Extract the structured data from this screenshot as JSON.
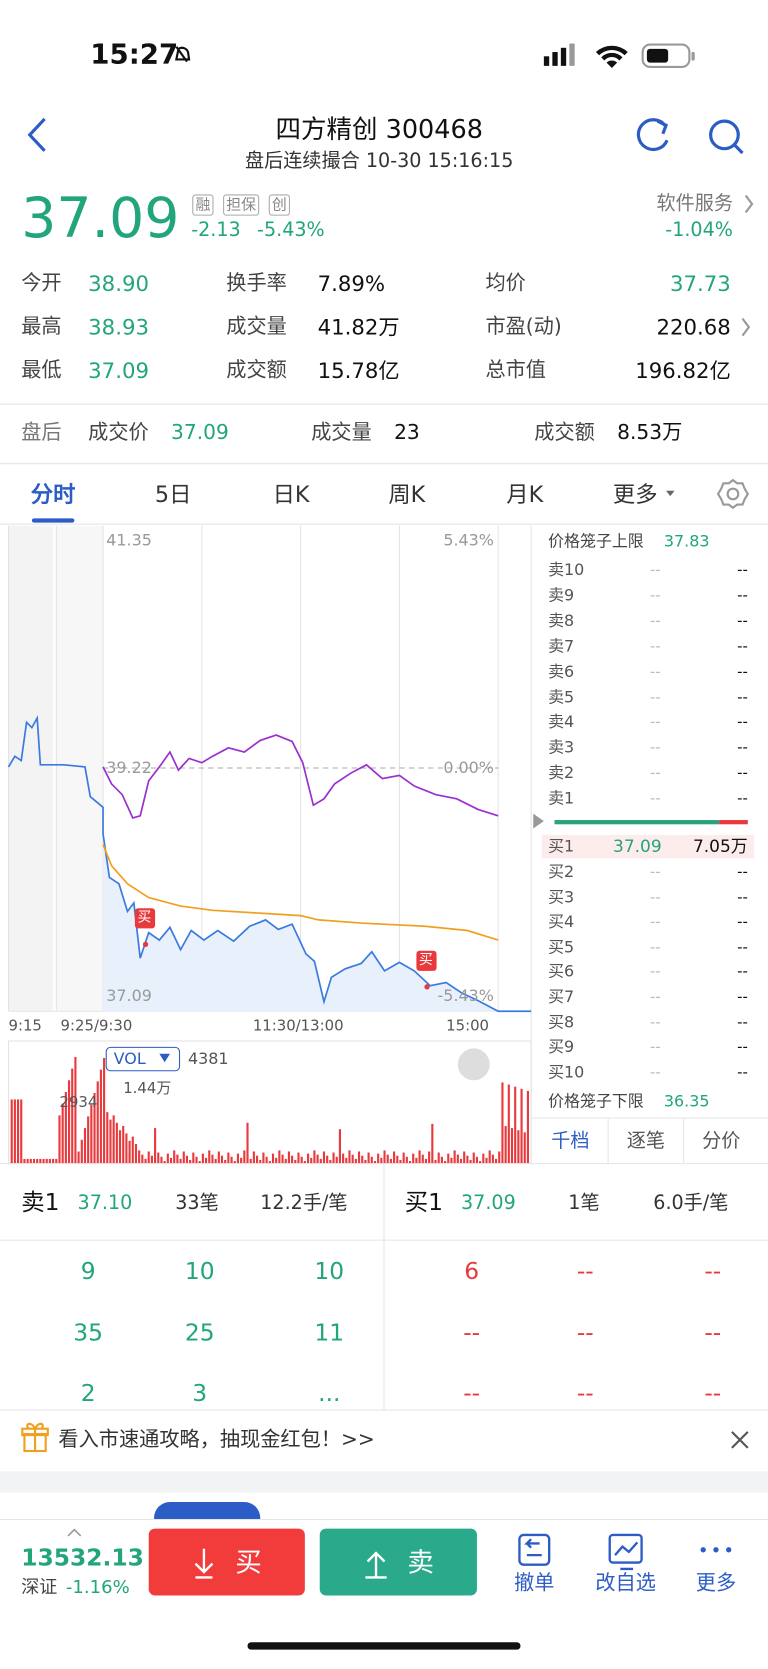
{
  "status": {
    "time": "15:27"
  },
  "header": {
    "title": "四方精创 300468",
    "subtitle": "盘后连续撮合 10-30 15:16:15"
  },
  "quote": {
    "price": "37.09",
    "badges": [
      "融",
      "担保",
      "创"
    ],
    "change": "-2.13",
    "percent": "-5.43%",
    "sector": "软件服务",
    "sector_percent": "-1.04%"
  },
  "stats": [
    [
      [
        "今开",
        "38.90"
      ],
      [
        "换手率",
        "7.89%"
      ],
      [
        "均价",
        "37.73"
      ]
    ],
    [
      [
        "最高",
        "38.93"
      ],
      [
        "成交量",
        "41.82万"
      ],
      [
        "市盈(动)",
        "220.68"
      ]
    ],
    [
      [
        "最低",
        "37.09"
      ],
      [
        "成交额",
        "15.78亿"
      ],
      [
        "总市值",
        "196.82亿"
      ]
    ]
  ],
  "after_hours": {
    "label": "盘后",
    "price_label": "成交价",
    "price": "37.09",
    "volume_label": "成交量",
    "volume": "23",
    "amount_label": "成交额",
    "amount": "8.53万"
  },
  "tabs": [
    "分时",
    "5日",
    "日K",
    "周K",
    "月K",
    "更多"
  ],
  "chart": {
    "high": "41.35",
    "high_pct": "5.43%",
    "mid": "39.22",
    "mid_pct": "0.00%",
    "low": "37.09",
    "low_pct": "-5.43%",
    "times": [
      "9:15",
      "9:25/9:30",
      "11:30/13:00",
      "15:00"
    ],
    "buy_marker": "买",
    "vol_label": "VOL",
    "vol_value": "4381",
    "vol_left": "2934",
    "vol_max": "1.44万"
  },
  "order_book": {
    "upper_label": "价格笼子上限",
    "upper": "37.83",
    "asks": [
      {
        "level": "卖10",
        "price": "--",
        "volume": "--"
      },
      {
        "level": "卖9",
        "price": "--",
        "volume": "--"
      },
      {
        "level": "卖8",
        "price": "--",
        "volume": "--"
      },
      {
        "level": "卖7",
        "price": "--",
        "volume": "--"
      },
      {
        "level": "卖6",
        "price": "--",
        "volume": "--"
      },
      {
        "level": "卖5",
        "price": "--",
        "volume": "--"
      },
      {
        "level": "卖4",
        "price": "--",
        "volume": "--"
      },
      {
        "level": "卖3",
        "price": "--",
        "volume": "--"
      },
      {
        "level": "卖2",
        "price": "--",
        "volume": "--"
      },
      {
        "level": "卖1",
        "price": "--",
        "volume": "--"
      }
    ],
    "bids": [
      {
        "level": "买1",
        "price": "37.09",
        "volume": "7.05万"
      },
      {
        "level": "买2",
        "price": "--",
        "volume": "--"
      },
      {
        "level": "买3",
        "price": "--",
        "volume": "--"
      },
      {
        "level": "买4",
        "price": "--",
        "volume": "--"
      },
      {
        "level": "买5",
        "price": "--",
        "volume": "--"
      },
      {
        "level": "买6",
        "price": "--",
        "volume": "--"
      },
      {
        "level": "买7",
        "price": "--",
        "volume": "--"
      },
      {
        "level": "买8",
        "price": "--",
        "volume": "--"
      },
      {
        "level": "买9",
        "price": "--",
        "volume": "--"
      },
      {
        "level": "买10",
        "price": "--",
        "volume": "--"
      }
    ],
    "lower_label": "价格笼子下限",
    "lower": "36.35",
    "tabs": [
      "千档",
      "逐笔",
      "分价"
    ]
  },
  "queue": {
    "ask": [
      "卖1",
      "37.10",
      "33笔",
      "12.2手/笔"
    ],
    "bid": [
      "买1",
      "37.09",
      "1笔",
      "6.0手/笔"
    ],
    "ask_rows": [
      [
        "9",
        "10",
        "10"
      ],
      [
        "35",
        "25",
        "11"
      ],
      [
        "2",
        "3",
        "..."
      ]
    ],
    "bid_rows": [
      [
        "6",
        "--",
        "--"
      ],
      [
        "--",
        "--",
        "--"
      ],
      [
        "--",
        "--",
        "--"
      ]
    ]
  },
  "banner": {
    "text": "看入市速通攻略，抽现金红包！>>"
  },
  "footer": {
    "index": "13532.13",
    "index_name": "深证",
    "index_percent": "-1.16%",
    "buy": "买",
    "sell": "卖",
    "actions": [
      "撤单",
      "改自选",
      "更多"
    ]
  }
}
